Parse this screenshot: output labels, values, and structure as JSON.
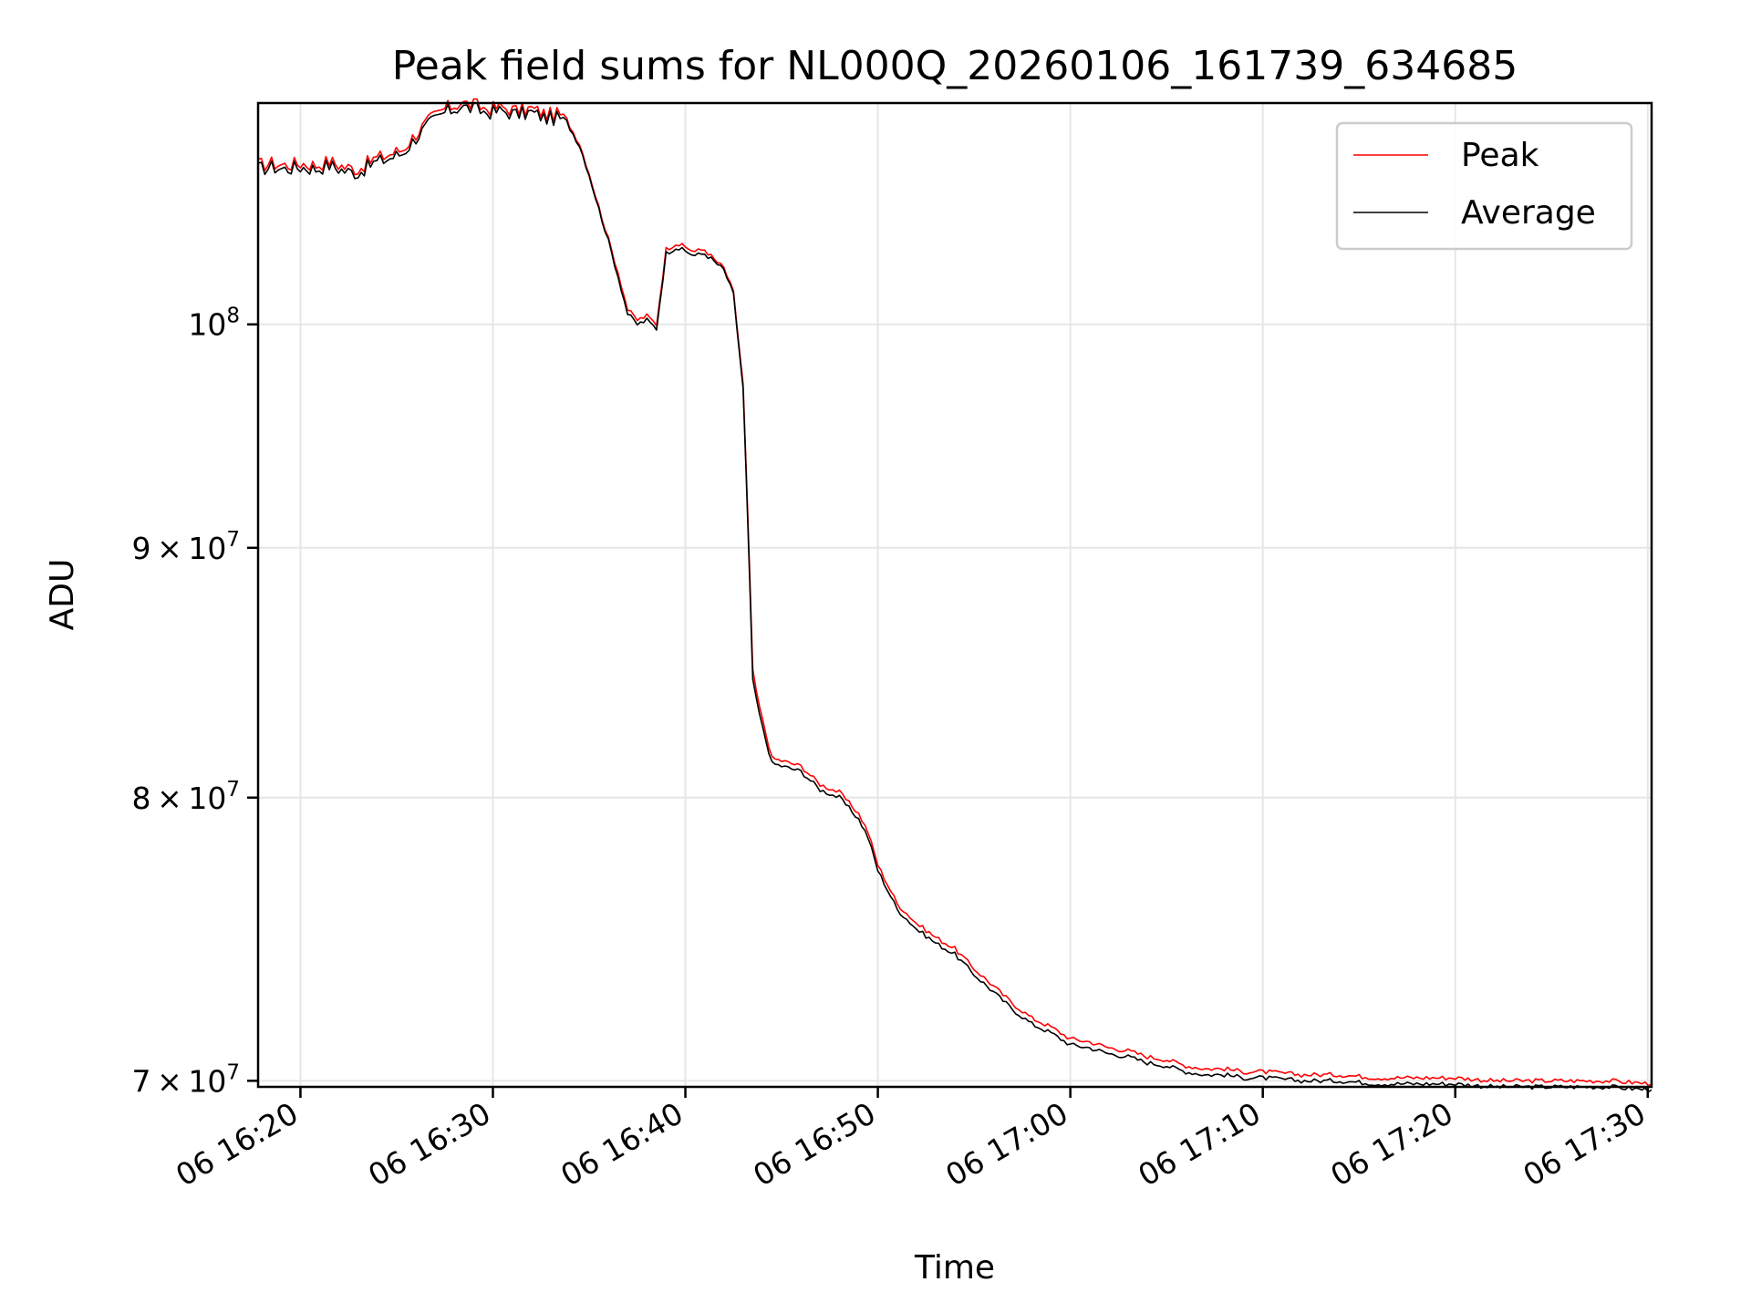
{
  "chart_data": {
    "type": "line",
    "title": "Peak field sums for NL000Q_20260106_161739_634685",
    "xlabel": "Time",
    "ylabel": "ADU",
    "yscale": "log",
    "grid": true,
    "legend_position": "top-right",
    "x_unit": "minutes after 16:00",
    "xlim": [
      17.8,
      90.2
    ],
    "ylim": [
      69800000,
      111000000
    ],
    "x_ticks": [
      {
        "value": 20,
        "label": "06 16:20"
      },
      {
        "value": 30,
        "label": "06 16:30"
      },
      {
        "value": 40,
        "label": "06 16:40"
      },
      {
        "value": 50,
        "label": "06 16:50"
      },
      {
        "value": 60,
        "label": "06 17:00"
      },
      {
        "value": 70,
        "label": "06 17:10"
      },
      {
        "value": 80,
        "label": "06 17:20"
      },
      {
        "value": 90,
        "label": "06 17:30"
      }
    ],
    "y_ticks": [
      {
        "value": 70000000,
        "mant": "7",
        "exp": "7"
      },
      {
        "value": 80000000,
        "mant": "8",
        "exp": "7"
      },
      {
        "value": 90000000,
        "mant": "9",
        "exp": "7"
      },
      {
        "value": 100000000,
        "mant": "",
        "exp": "8"
      }
    ],
    "series": [
      {
        "name": "Peak",
        "color": "#ff0000",
        "x": [
          17.8,
          18.5,
          19.2,
          20.0,
          20.8,
          21.5,
          22.3,
          23.0,
          23.8,
          24.5,
          25.3,
          26.0,
          26.8,
          27.5,
          28.3,
          29.0,
          29.7,
          30.5,
          31.2,
          32.0,
          32.8,
          33.5,
          34.0,
          34.5,
          35.0,
          35.5,
          36.0,
          36.5,
          37.0,
          37.5,
          38.0,
          38.5,
          39.0,
          39.5,
          40.0,
          40.5,
          41.0,
          41.5,
          42.0,
          42.5,
          43.0,
          43.5,
          43.7,
          44.0,
          44.5,
          45.0,
          46.0,
          47.0,
          48.0,
          49.0,
          49.5,
          50.0,
          51.0,
          52.0,
          53.0,
          54.0,
          55.0,
          56.0,
          57.0,
          58.0,
          59.0,
          60.0,
          61.0,
          62.0,
          63.0,
          64.0,
          65.0,
          66.0,
          67.0,
          68.0,
          69.0,
          70.0,
          72.0,
          74.0,
          76.0,
          78.0,
          80.0,
          82.0,
          84.0,
          86.0,
          88.0,
          90.2
        ],
        "values": [
          107800000,
          107900000,
          107800000,
          107900000,
          107800000,
          108000000,
          107700000,
          107600000,
          108100000,
          108300000,
          108600000,
          109400000,
          110200000,
          110700000,
          111000000,
          110900000,
          110700000,
          110800000,
          110600000,
          110700000,
          110400000,
          110400000,
          109800000,
          108900000,
          107400000,
          105700000,
          104100000,
          102500000,
          100700000,
          100200000,
          100400000,
          100000000,
          103600000,
          103900000,
          103700000,
          103500000,
          103600000,
          103100000,
          102700000,
          101500000,
          97200000,
          85000000,
          84000000,
          83000000,
          81500000,
          81400000,
          81200000,
          80500000,
          80200000,
          79400000,
          78700000,
          77500000,
          76100000,
          75400000,
          74900000,
          74500000,
          73800000,
          73200000,
          72600000,
          72100000,
          71800000,
          71400000,
          71300000,
          71100000,
          71000000,
          70800000,
          70700000,
          70500000,
          70400000,
          70400000,
          70300000,
          70300000,
          70200000,
          70200000,
          70100000,
          70100000,
          70100000,
          70000000,
          70000000,
          70000000,
          70000000,
          69900000
        ]
      },
      {
        "name": "Average",
        "color": "#000000",
        "x": [
          17.8,
          18.5,
          19.2,
          20.0,
          20.8,
          21.5,
          22.3,
          23.0,
          23.8,
          24.5,
          25.3,
          26.0,
          26.8,
          27.5,
          28.3,
          29.0,
          29.7,
          30.5,
          31.2,
          32.0,
          32.8,
          33.5,
          34.0,
          34.5,
          35.0,
          35.5,
          36.0,
          36.5,
          37.0,
          37.5,
          38.0,
          38.5,
          39.0,
          39.5,
          40.0,
          40.5,
          41.0,
          41.5,
          42.0,
          42.5,
          43.0,
          43.5,
          43.7,
          44.0,
          44.5,
          45.0,
          46.0,
          47.0,
          48.0,
          49.0,
          49.5,
          50.0,
          51.0,
          52.0,
          53.0,
          54.0,
          55.0,
          56.0,
          57.0,
          58.0,
          59.0,
          60.0,
          61.0,
          62.0,
          63.0,
          64.0,
          65.0,
          66.0,
          67.0,
          68.0,
          69.0,
          70.0,
          72.0,
          74.0,
          76.0,
          78.0,
          80.0,
          82.0,
          84.0,
          86.0,
          88.0,
          90.2
        ],
        "values": [
          107600000,
          107700000,
          107600000,
          107700000,
          107600000,
          107800000,
          107500000,
          107400000,
          107900000,
          108100000,
          108400000,
          109200000,
          110000000,
          110500000,
          110800000,
          110700000,
          110500000,
          110600000,
          110400000,
          110500000,
          110200000,
          110200000,
          109700000,
          108800000,
          107300000,
          105600000,
          104000000,
          102300000,
          100500000,
          100000000,
          100200000,
          99800000,
          103400000,
          103700000,
          103500000,
          103300000,
          103400000,
          103000000,
          102600000,
          101400000,
          97000000,
          84600000,
          83700000,
          82700000,
          81300000,
          81200000,
          81000000,
          80300000,
          80000000,
          79200000,
          78500000,
          77300000,
          75900000,
          75200000,
          74700000,
          74300000,
          73600000,
          73000000,
          72400000,
          71900000,
          71600000,
          71200000,
          71100000,
          70900000,
          70800000,
          70600000,
          70500000,
          70300000,
          70200000,
          70200000,
          70100000,
          70100000,
          70000000,
          70000000,
          69900000,
          69900000,
          69900000,
          69800000,
          69800000,
          69800000,
          69800000,
          69700000
        ]
      }
    ]
  }
}
